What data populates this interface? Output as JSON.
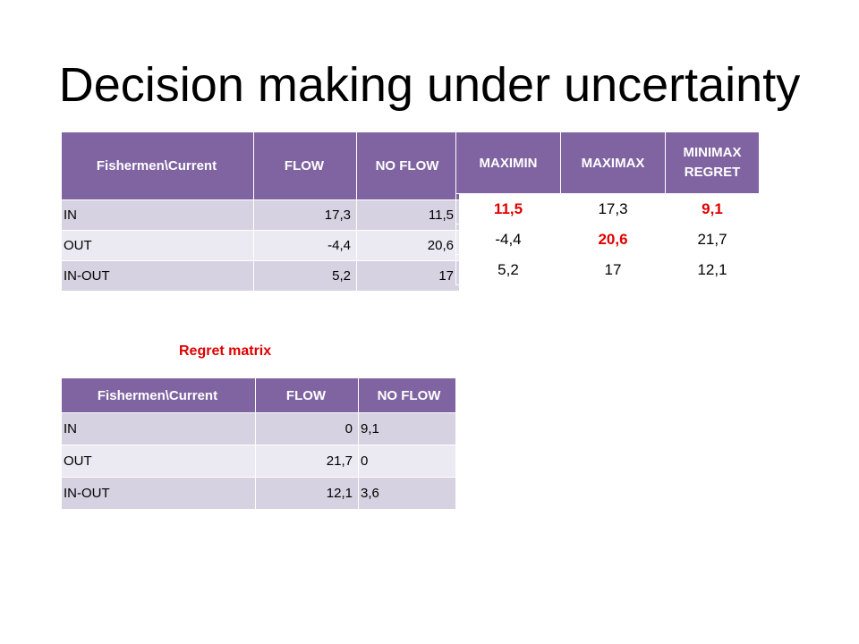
{
  "title": "Decision making under uncertainty",
  "payoff_table": {
    "headers": [
      "Fishermen\\Current",
      "FLOW",
      "NO FLOW"
    ],
    "rows": [
      [
        "IN",
        "17,3",
        "11,5"
      ],
      [
        "OUT",
        "-4,4",
        "20,6"
      ],
      [
        "IN-OUT",
        "5,2",
        "17"
      ]
    ]
  },
  "decision_table": {
    "headers": [
      "MAXIMIN",
      "MAXIMAX",
      "MINIMAX REGRET"
    ],
    "rows": [
      [
        "11,5",
        "17,3",
        "9,1"
      ],
      [
        "-4,4",
        "20,6",
        "21,7"
      ],
      [
        "5,2",
        "17",
        "12,1"
      ]
    ],
    "highlight_color": "#e00000"
  },
  "regret_label": "Regret matrix",
  "regret_table": {
    "headers": [
      "Fishermen\\Current",
      "FLOW",
      "NO FLOW"
    ],
    "rows": [
      [
        "IN",
        "0",
        "9,1"
      ],
      [
        "OUT",
        "21,7",
        "0"
      ],
      [
        "IN-OUT",
        "12,1",
        "3,6"
      ]
    ]
  },
  "colors": {
    "header_bg": "#8064a2",
    "row_dark": "#d6d2e1",
    "row_light": "#ebe9f1"
  }
}
